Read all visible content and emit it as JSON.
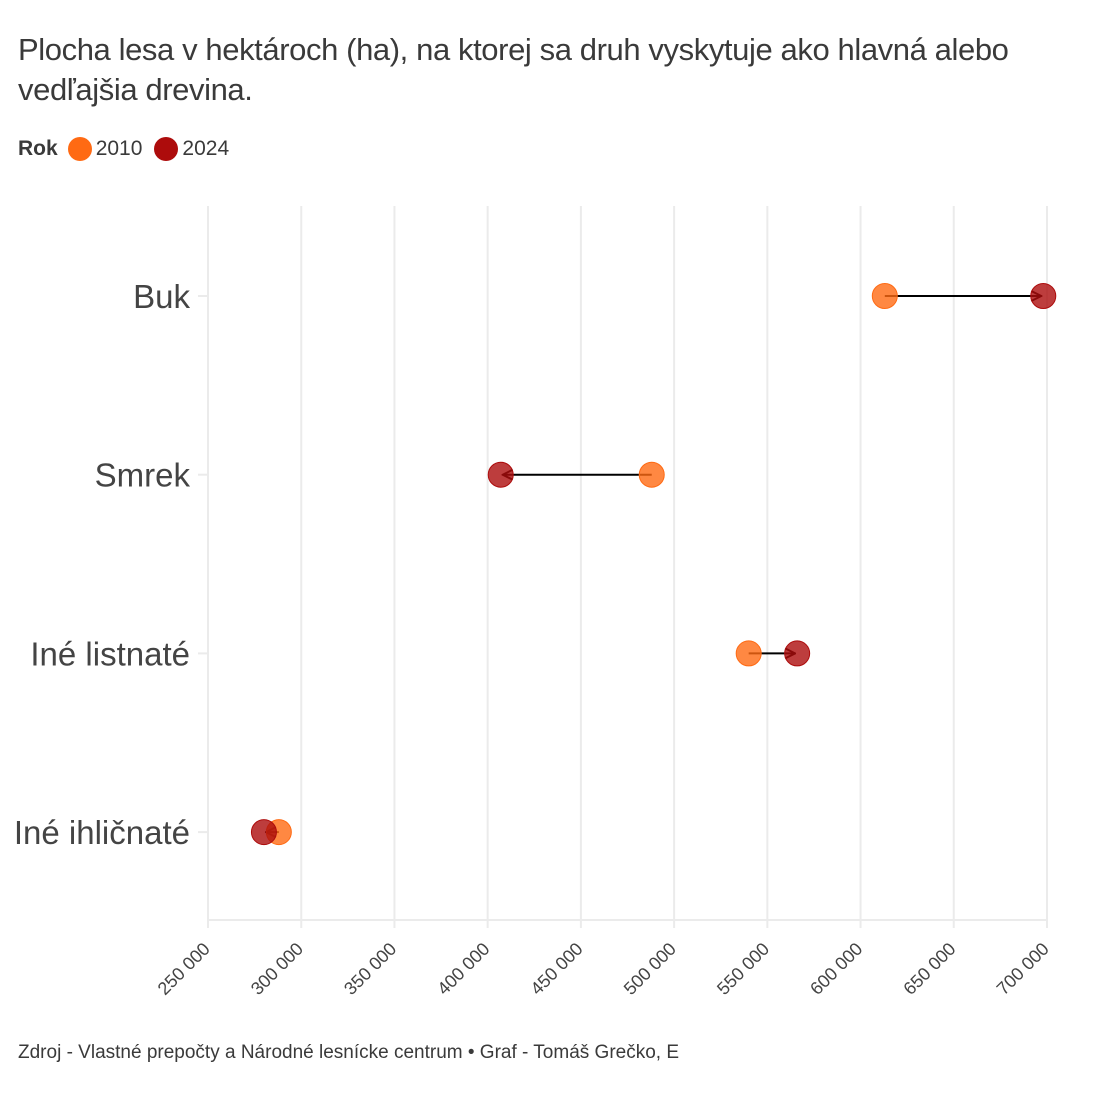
{
  "title": "Plocha lesa v hektároch (ha), na ktorej sa druh vyskytuje ako hlavná alebo vedľajšia drevina.",
  "legend": {
    "title": "Rok",
    "items": [
      {
        "label": "2010",
        "color": "#ff6a13"
      },
      {
        "label": "2024",
        "color": "#ad0c0c"
      }
    ]
  },
  "caption": "Zdroj - Vlastné prepočty a Národné lesnícke centrum • Graf - Tomáš Grečko, E",
  "chart_data": {
    "type": "scatter",
    "subtype": "dumbbell-arrow",
    "categories": [
      "Buk",
      "Smrek",
      "Iné listnaté",
      "Iné ihličnaté"
    ],
    "series": [
      {
        "name": "2010",
        "color": "#ff6a13",
        "values": [
          613000,
          488000,
          540000,
          288000
        ]
      },
      {
        "name": "2024",
        "color": "#ad0c0c",
        "values": [
          698000,
          407000,
          566000,
          280000
        ]
      }
    ],
    "xlim": [
      250000,
      700000
    ],
    "xticks": [
      250000,
      300000,
      350000,
      400000,
      450000,
      500000,
      550000,
      600000,
      650000,
      700000
    ],
    "xtick_labels": [
      "250 000",
      "300 000",
      "350 000",
      "400 000",
      "450 000",
      "500 000",
      "550 000",
      "600 000",
      "650 000",
      "700 000"
    ],
    "xlabel": "",
    "ylabel": "",
    "grid": "vertical",
    "legend_position": "top-left"
  }
}
